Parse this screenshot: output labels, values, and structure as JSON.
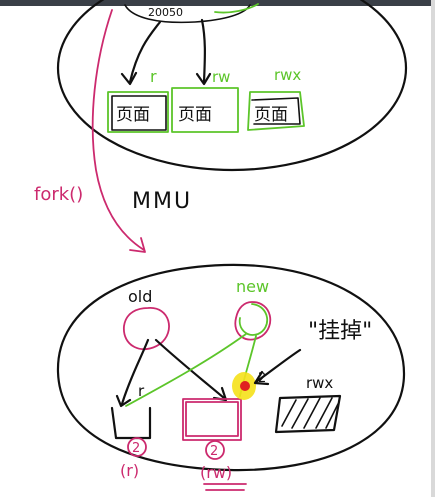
{
  "colors": {
    "ink": "#111111",
    "green": "#5cc52a",
    "pink": "#cc2a6e",
    "highlight": "#f5e11a",
    "dot": "#e02020",
    "toolbar": "#3a3f47"
  },
  "top": {
    "process_label": "20050",
    "pages": [
      {
        "label": "页面",
        "perm": "r"
      },
      {
        "label": "页面",
        "perm": "rw"
      },
      {
        "label": "页面",
        "perm": "rwx"
      }
    ]
  },
  "middle": {
    "fork_label": "fork()",
    "mmu_label": "MMU"
  },
  "bottom": {
    "old_label": "old",
    "new_label": "new",
    "mount_label": "\"挂掉\"",
    "mount_mark": "2",
    "page1_perm": "r",
    "page3_perm": "rwx",
    "refcount1": "2",
    "refcount1_perm": "(r)",
    "refcount2": "2",
    "refcount2_perm": "(rw)"
  }
}
